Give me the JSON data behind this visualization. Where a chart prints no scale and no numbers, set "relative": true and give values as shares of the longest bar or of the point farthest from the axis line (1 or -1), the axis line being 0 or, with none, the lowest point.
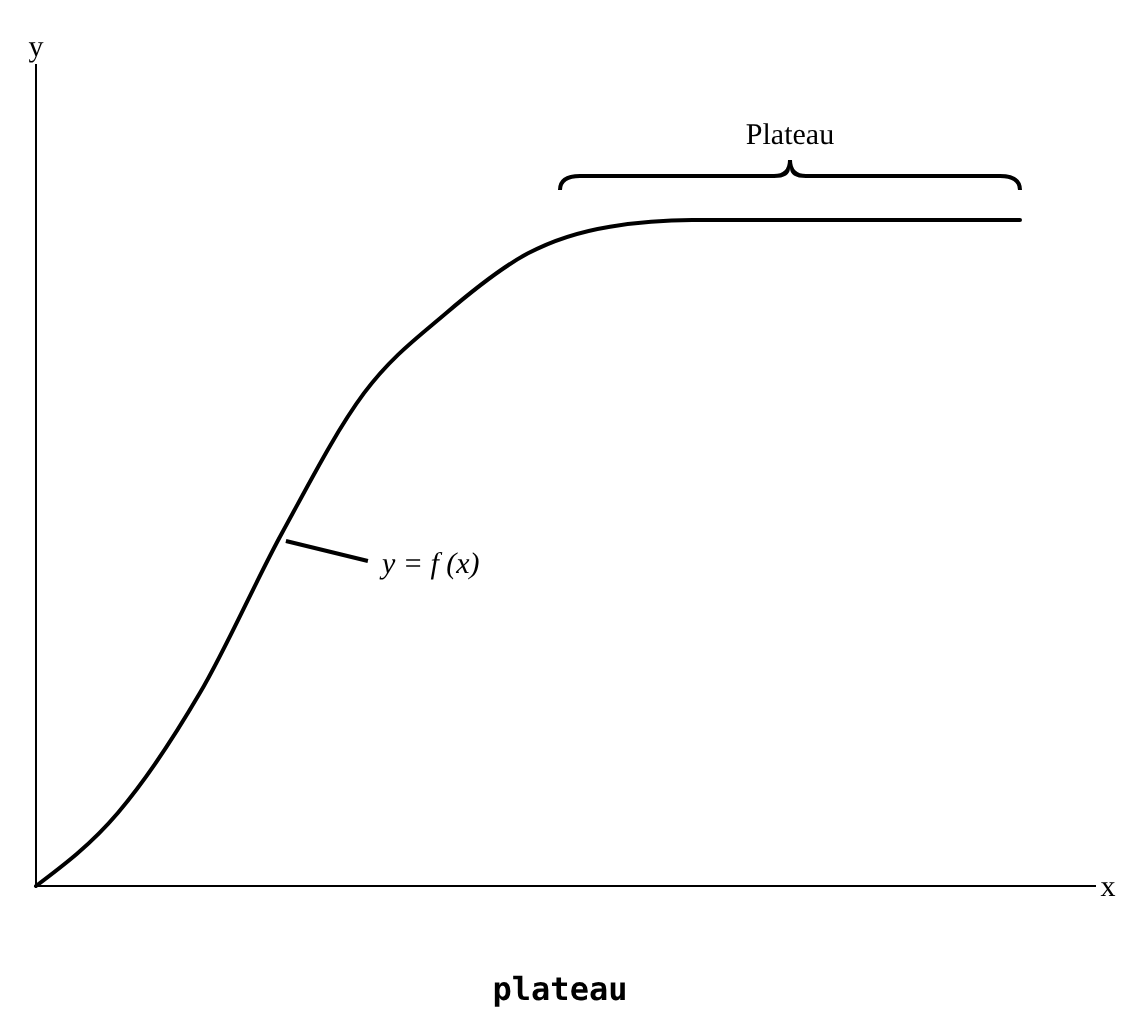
{
  "chart_data": {
    "type": "line",
    "title": "plateau",
    "xlabel": "x",
    "relative": true,
    "categories": [
      null,
      null,
      null,
      null,
      null,
      null,
      null,
      null,
      null,
      null,
      null,
      null,
      null
    ],
    "series": [
      {
        "color": "#000000",
        "values": [
          0,
          0.11,
          0.29,
          0.53,
          0.74,
          0.86,
          0.95,
          0.99,
          1,
          1,
          1,
          1,
          1
        ]
      }
    ],
    "annotations": [
      "y",
      "y = f (x)",
      "Plateau"
    ],
    "marker": "none",
    "line_style": "solid"
  }
}
